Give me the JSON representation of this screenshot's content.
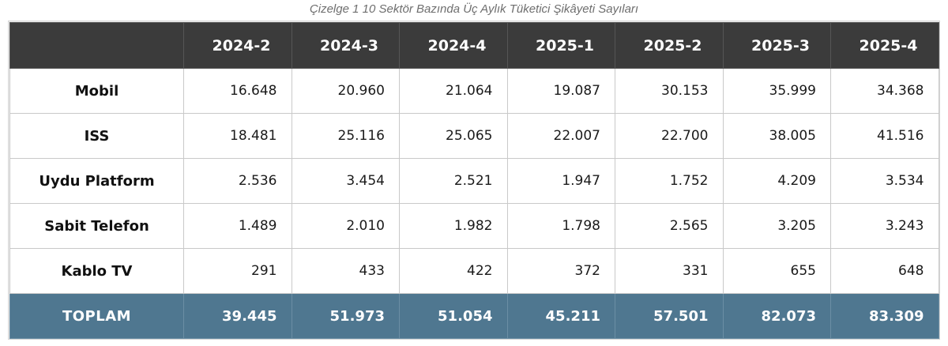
{
  "caption": "Çizelge 1 10 Sektör Bazında Üç Aylık Tüketici Şikâyeti Sayıları",
  "table": {
    "headers": [
      "2024-2",
      "2024-3",
      "2024-4",
      "2025-1",
      "2025-2",
      "2025-3",
      "2025-4"
    ],
    "rows": [
      {
        "label": "Mobil",
        "values": [
          "16.648",
          "20.960",
          "21.064",
          "19.087",
          "30.153",
          "35.999",
          "34.368"
        ]
      },
      {
        "label": "ISS",
        "values": [
          "18.481",
          "25.116",
          "25.065",
          "22.007",
          "22.700",
          "38.005",
          "41.516"
        ]
      },
      {
        "label": "Uydu Platform",
        "values": [
          "2.536",
          "3.454",
          "2.521",
          "1.947",
          "1.752",
          "4.209",
          "3.534"
        ]
      },
      {
        "label": "Sabit Telefon",
        "values": [
          "1.489",
          "2.010",
          "1.982",
          "1.798",
          "2.565",
          "3.205",
          "3.243"
        ]
      },
      {
        "label": "Kablo TV",
        "values": [
          "291",
          "433",
          "422",
          "372",
          "331",
          "655",
          "648"
        ]
      }
    ],
    "total": {
      "label": "TOPLAM",
      "values": [
        "39.445",
        "51.973",
        "51.054",
        "45.211",
        "57.501",
        "82.073",
        "83.309"
      ]
    }
  },
  "colors": {
    "header_bg": "#3b3b3b",
    "total_bg": "#4f7790"
  }
}
